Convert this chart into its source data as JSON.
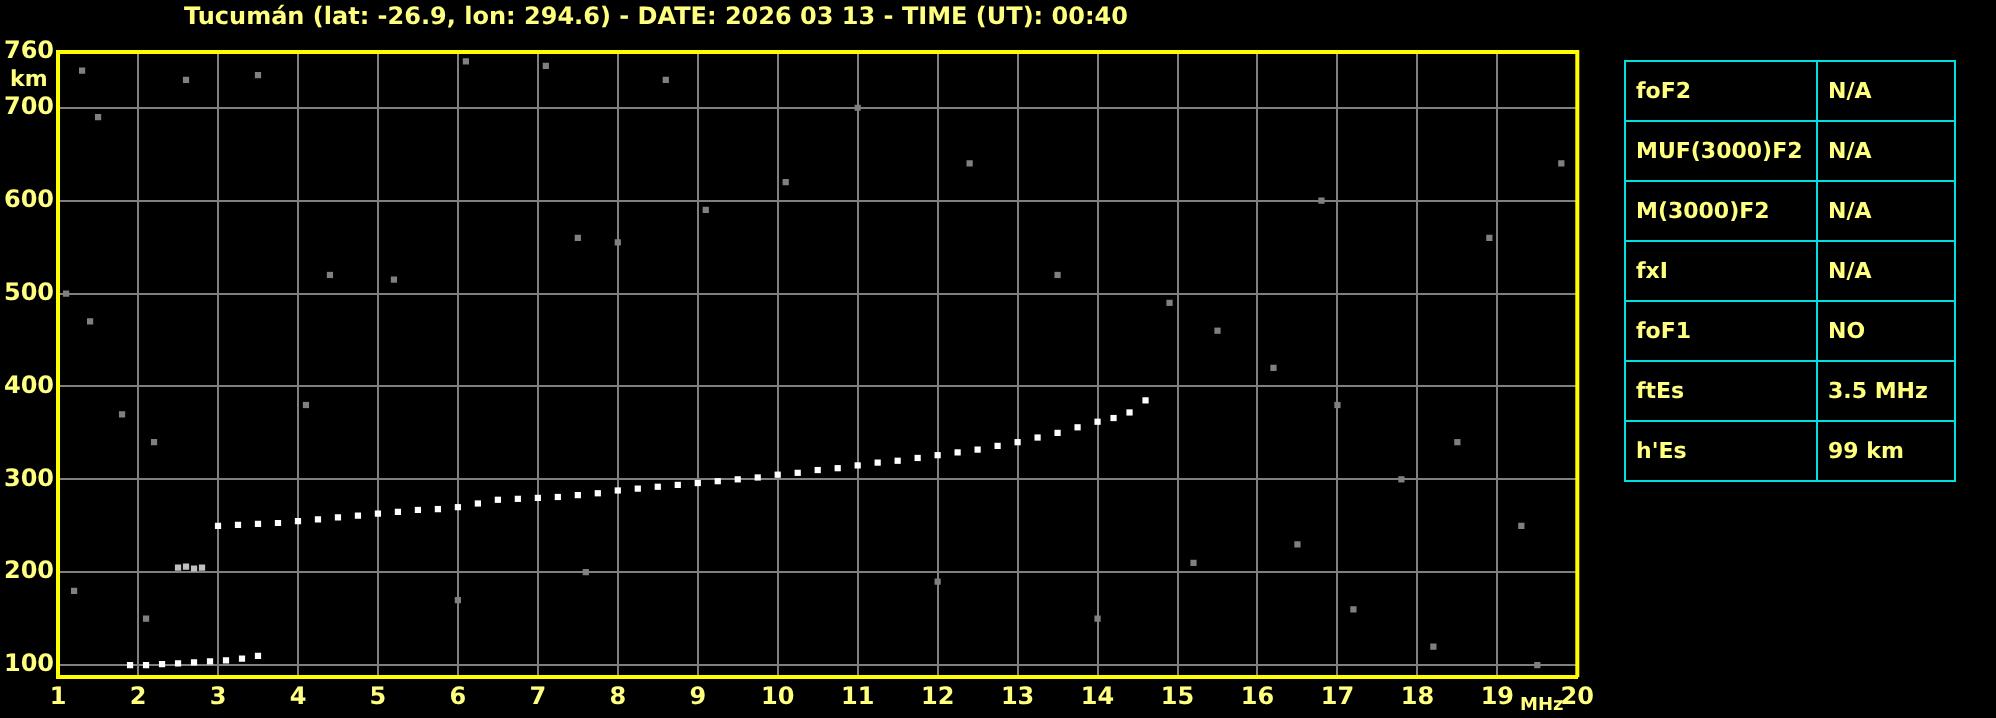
{
  "chart_data": [
    {
      "type": "scatter",
      "title": "Tucumán (lat: -26.9, lon: 294.6) - DATE: 2026 03 13 - TIME (UT): 00:40",
      "xlabel": "MHz",
      "ylabel": "km",
      "xlim": [
        1,
        20
      ],
      "ylim": [
        87,
        760
      ],
      "xticks": [
        1,
        2,
        3,
        4,
        5,
        6,
        7,
        8,
        9,
        10,
        11,
        12,
        13,
        14,
        15,
        16,
        17,
        18,
        19,
        20
      ],
      "yticks": [
        100,
        200,
        300,
        400,
        500,
        600,
        700,
        760
      ],
      "grid": true,
      "legend": false,
      "marker": "square",
      "series": [
        {
          "color": "#ffffff",
          "x": [
            3,
            3.25,
            3.5,
            3.75,
            4,
            4.25,
            4.5,
            4.75,
            5,
            5.25,
            5.5,
            5.75,
            6,
            6.25,
            6.5,
            6.75,
            7,
            7.25,
            7.5,
            7.75,
            8,
            8.25,
            8.5,
            8.75,
            9,
            9.25,
            9.5,
            9.75,
            10,
            10.25,
            10.5,
            10.75,
            11,
            11.25,
            11.5,
            11.75,
            12,
            12.25,
            12.5,
            12.75,
            13,
            13.25,
            13.5,
            13.75,
            14,
            14.2,
            14.4,
            14.6
          ],
          "values": [
            250,
            251,
            252,
            253,
            255,
            257,
            259,
            261,
            263,
            265,
            267,
            268,
            270,
            274,
            278,
            279,
            280,
            281,
            283,
            285,
            288,
            290,
            292,
            294,
            296,
            298,
            300,
            302,
            305,
            307,
            310,
            312,
            315,
            318,
            320,
            323,
            326,
            329,
            332,
            336,
            340,
            345,
            350,
            356,
            362,
            366,
            372,
            385
          ]
        },
        {
          "color": "#ffffff",
          "x": [
            1.9,
            2.1,
            2.3,
            2.5,
            2.7,
            2.9,
            3.1,
            3.3,
            3.5
          ],
          "values": [
            100,
            100,
            101,
            102,
            103,
            104,
            105,
            107,
            110
          ]
        },
        {
          "color": "#c0c0c0",
          "x": [
            2.5,
            2.6,
            2.7,
            2.8
          ],
          "values": [
            205,
            206,
            204,
            205
          ]
        },
        {
          "color": "#808080",
          "x": [
            1.3,
            1.5,
            2.6,
            3.5,
            6.1,
            7.1,
            1.1,
            1.4,
            4.4,
            5.2,
            7.5,
            8,
            9.1,
            10.1,
            13.5,
            14.9,
            15.5,
            16.2,
            17,
            17.8,
            18.5,
            19.3,
            16.5,
            15.2,
            14,
            17.2,
            18.2,
            19.5,
            12,
            7.6,
            6,
            1.2,
            2.1,
            1.8,
            2.2,
            4.1,
            19.8,
            18.9,
            16.8,
            12.4,
            11,
            8.6
          ],
          "values": [
            740,
            690,
            730,
            735,
            750,
            745,
            500,
            470,
            520,
            515,
            560,
            555,
            590,
            620,
            520,
            490,
            460,
            420,
            380,
            300,
            340,
            250,
            230,
            210,
            150,
            160,
            120,
            100,
            190,
            200,
            170,
            180,
            150,
            370,
            340,
            380,
            640,
            560,
            600,
            640,
            700,
            730
          ]
        }
      ]
    },
    {
      "type": "other",
      "categories": [
        "foF2",
        "MUF(3000)F2",
        "M(3000)F2",
        "fxI",
        "foF1",
        "ftEs",
        "h'Es"
      ],
      "value_labels": [
        "N/A",
        "N/A",
        "N/A",
        "N/A",
        "NO",
        "3.5 MHz",
        "99 km"
      ]
    }
  ]
}
